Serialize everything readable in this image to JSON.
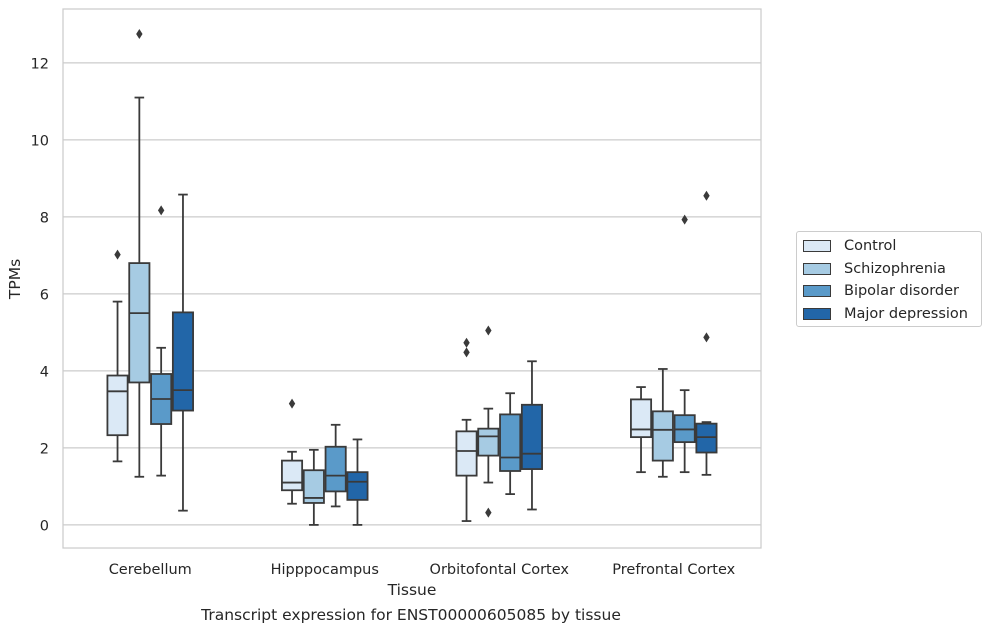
{
  "chart_data": {
    "type": "box",
    "title": "",
    "caption": "Transcript expression for ENST00000605085 by tissue",
    "xlabel": "Tissue",
    "ylabel": "TPMs",
    "ylim": [
      -0.6,
      13.4
    ],
    "yticks": [
      0,
      2,
      4,
      6,
      8,
      10,
      12
    ],
    "grid": "horizontal",
    "legend_position": "right",
    "categories": [
      "Cerebellum",
      "Hipppocampus",
      "Orbitofontal Cortex",
      "Prefrontal Cortex"
    ],
    "series": [
      {
        "name": "Control",
        "color": "#dbe9f6",
        "boxes": [
          {
            "whislo": 1.65,
            "q1": 2.33,
            "med": 3.47,
            "q3": 3.88,
            "whishi": 5.8,
            "fliers": [
              7.02
            ]
          },
          {
            "whislo": 0.55,
            "q1": 0.9,
            "med": 1.1,
            "q3": 1.67,
            "whishi": 1.9,
            "fliers": [
              3.15
            ]
          },
          {
            "whislo": 0.1,
            "q1": 1.28,
            "med": 1.92,
            "q3": 2.43,
            "whishi": 2.73,
            "fliers": [
              4.48,
              4.73
            ]
          },
          {
            "whislo": 1.37,
            "q1": 2.28,
            "med": 2.48,
            "q3": 3.26,
            "whishi": 3.58,
            "fliers": []
          }
        ]
      },
      {
        "name": "Schizophrenia",
        "color": "#a6cbe3",
        "boxes": [
          {
            "whislo": 1.25,
            "q1": 3.7,
            "med": 5.5,
            "q3": 6.8,
            "whishi": 11.1,
            "fliers": [
              12.75
            ]
          },
          {
            "whislo": 0.0,
            "q1": 0.57,
            "med": 0.7,
            "q3": 1.42,
            "whishi": 1.95,
            "fliers": []
          },
          {
            "whislo": 1.1,
            "q1": 1.8,
            "med": 2.3,
            "q3": 2.5,
            "whishi": 3.02,
            "fliers": [
              0.32,
              5.05
            ]
          },
          {
            "whislo": 1.25,
            "q1": 1.67,
            "med": 2.47,
            "q3": 2.95,
            "whishi": 4.05,
            "fliers": []
          }
        ]
      },
      {
        "name": "Bipolar disorder",
        "color": "#5a9ac9",
        "boxes": [
          {
            "whislo": 1.28,
            "q1": 2.62,
            "med": 3.27,
            "q3": 3.92,
            "whishi": 4.6,
            "fliers": [
              8.17
            ]
          },
          {
            "whislo": 0.48,
            "q1": 0.87,
            "med": 1.28,
            "q3": 2.03,
            "whishi": 2.6,
            "fliers": []
          },
          {
            "whislo": 0.8,
            "q1": 1.4,
            "med": 1.75,
            "q3": 2.87,
            "whishi": 3.42,
            "fliers": []
          },
          {
            "whislo": 1.37,
            "q1": 2.15,
            "med": 2.48,
            "q3": 2.85,
            "whishi": 3.5,
            "fliers": [
              7.93
            ]
          }
        ]
      },
      {
        "name": "Major depression",
        "color": "#2266a8",
        "boxes": [
          {
            "whislo": 0.37,
            "q1": 2.97,
            "med": 3.5,
            "q3": 5.52,
            "whishi": 8.58,
            "fliers": []
          },
          {
            "whislo": 0.0,
            "q1": 0.65,
            "med": 1.12,
            "q3": 1.37,
            "whishi": 2.22,
            "fliers": []
          },
          {
            "whislo": 0.4,
            "q1": 1.45,
            "med": 1.85,
            "q3": 3.12,
            "whishi": 4.25,
            "fliers": []
          },
          {
            "whislo": 1.3,
            "q1": 1.88,
            "med": 2.28,
            "q3": 2.63,
            "whishi": 2.67,
            "fliers": [
              4.87,
              8.55
            ]
          }
        ]
      }
    ]
  }
}
